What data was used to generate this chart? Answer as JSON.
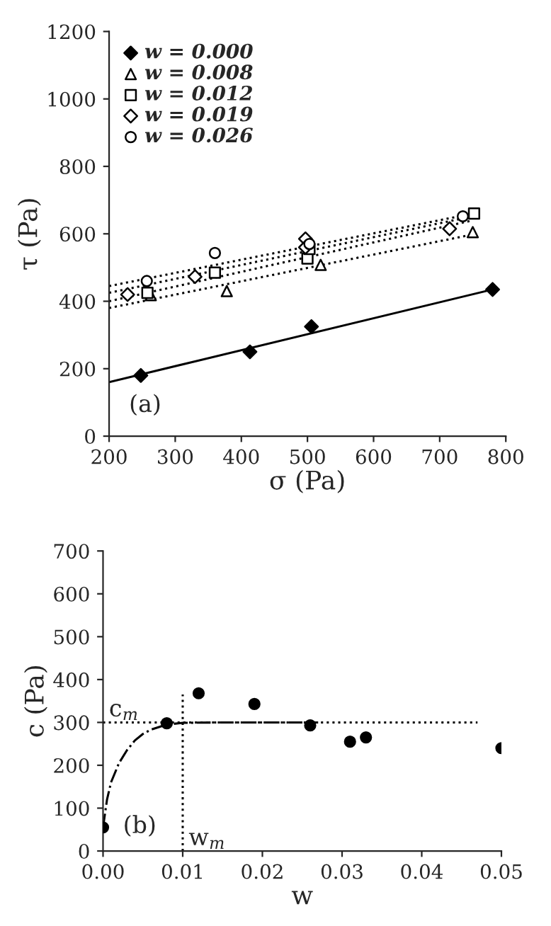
{
  "chart_data": [
    {
      "type": "scatter",
      "xlabel": "σ (Pa)",
      "ylabel": "τ (Pa)",
      "annotations": [
        "(a)"
      ],
      "xlim": [
        200,
        800
      ],
      "ylim": [
        0,
        1200
      ],
      "xticks": [
        200,
        300,
        400,
        500,
        600,
        700,
        800
      ],
      "yticks": [
        0,
        200,
        400,
        600,
        800,
        1000,
        1200
      ],
      "grid": false,
      "legend": "top left",
      "series": [
        {
          "name": "w = 0.000",
          "color": "#000000",
          "marker": "diamond",
          "x": [
            248,
            413,
            506,
            780
          ],
          "values": [
            180,
            250,
            325,
            435
          ]
        },
        {
          "name": "w = 0.008",
          "color": "#ffffff",
          "marker": "triangle",
          "x": [
            263,
            378,
            520,
            750
          ],
          "values": [
            418,
            430,
            508,
            605
          ]
        },
        {
          "name": "w = 0.012",
          "color": "#ffffff",
          "marker": "square",
          "x": [
            258,
            360,
            500,
            503,
            752
          ],
          "values": [
            425,
            485,
            527,
            555,
            660
          ]
        },
        {
          "name": "w = 0.019",
          "color": "#ffffff",
          "marker": "diamond",
          "x": [
            228,
            330,
            497,
            497,
            715
          ],
          "values": [
            420,
            473,
            585,
            560,
            615
          ]
        },
        {
          "name": "w = 0.026",
          "color": "#ffffff",
          "marker": "circle",
          "x": [
            257,
            360,
            503,
            735
          ],
          "values": [
            460,
            543,
            570,
            652
          ]
        },
        {
          "type": "line",
          "color": "#000000",
          "line_style": "solid",
          "x": [
            200,
            780
          ],
          "values": [
            160,
            435
          ]
        },
        {
          "type": "line",
          "color": "#000000",
          "line_style": "dotted",
          "x": [
            200,
            750
          ],
          "values": [
            380,
            598
          ]
        },
        {
          "type": "line",
          "color": "#000000",
          "line_style": "dotted",
          "x": [
            200,
            750
          ],
          "values": [
            400,
            640
          ]
        },
        {
          "type": "line",
          "color": "#000000",
          "line_style": "dotted",
          "x": [
            200,
            750
          ],
          "values": [
            425,
            652
          ]
        },
        {
          "type": "line",
          "color": "#000000",
          "line_style": "dotted",
          "x": [
            200,
            750
          ],
          "values": [
            445,
            660
          ]
        }
      ]
    },
    {
      "type": "scatter",
      "xlabel": "w",
      "ylabel": "c (Pa)",
      "annotations": [
        "(b)",
        {
          "text": "c$_{m}$",
          "x": 0.0,
          "y": 300
        },
        {
          "text": "w$_{m}$",
          "x": 0.01,
          "y": 0
        }
      ],
      "xlim": [
        0,
        0.05
      ],
      "ylim": [
        0,
        700
      ],
      "xticks": [
        {
          "value": 0,
          "label": "0.00"
        },
        {
          "value": 0.01,
          "label": "0.01"
        },
        {
          "value": 0.02,
          "label": "0.02"
        },
        {
          "value": 0.03,
          "label": "0.03"
        },
        {
          "value": 0.04,
          "label": "0.04"
        },
        {
          "value": 0.05,
          "label": "0.05"
        }
      ],
      "yticks": [
        0,
        100,
        200,
        300,
        400,
        500,
        600,
        700
      ],
      "grid": false,
      "series": [
        {
          "color": "#000000",
          "marker": "circle",
          "x": [
            0.0,
            0.008,
            0.012,
            0.019,
            0.026,
            0.031,
            0.033,
            0.05
          ],
          "values": [
            55,
            298,
            368,
            343,
            293,
            255,
            265,
            240
          ]
        },
        {
          "type": "line",
          "color": "#000000",
          "line_style": "dotted",
          "x": [
            0,
            0.047
          ],
          "values": [
            300,
            300
          ]
        },
        {
          "type": "line",
          "color": "#000000",
          "line_style": "dotted",
          "x": [
            0.01,
            0.01
          ],
          "values": [
            0,
            365
          ]
        },
        {
          "type": "line",
          "color": "#000000",
          "line_style": "dashdot",
          "x": [
            0,
            0.0005,
            0.001,
            0.002,
            0.003,
            0.004,
            0.005,
            0.006,
            0.008,
            0.01,
            0.015,
            0.02,
            0.027
          ],
          "values": [
            55,
            120,
            160,
            205,
            235,
            258,
            273,
            283,
            295,
            299,
            300,
            300,
            300
          ]
        }
      ]
    }
  ]
}
